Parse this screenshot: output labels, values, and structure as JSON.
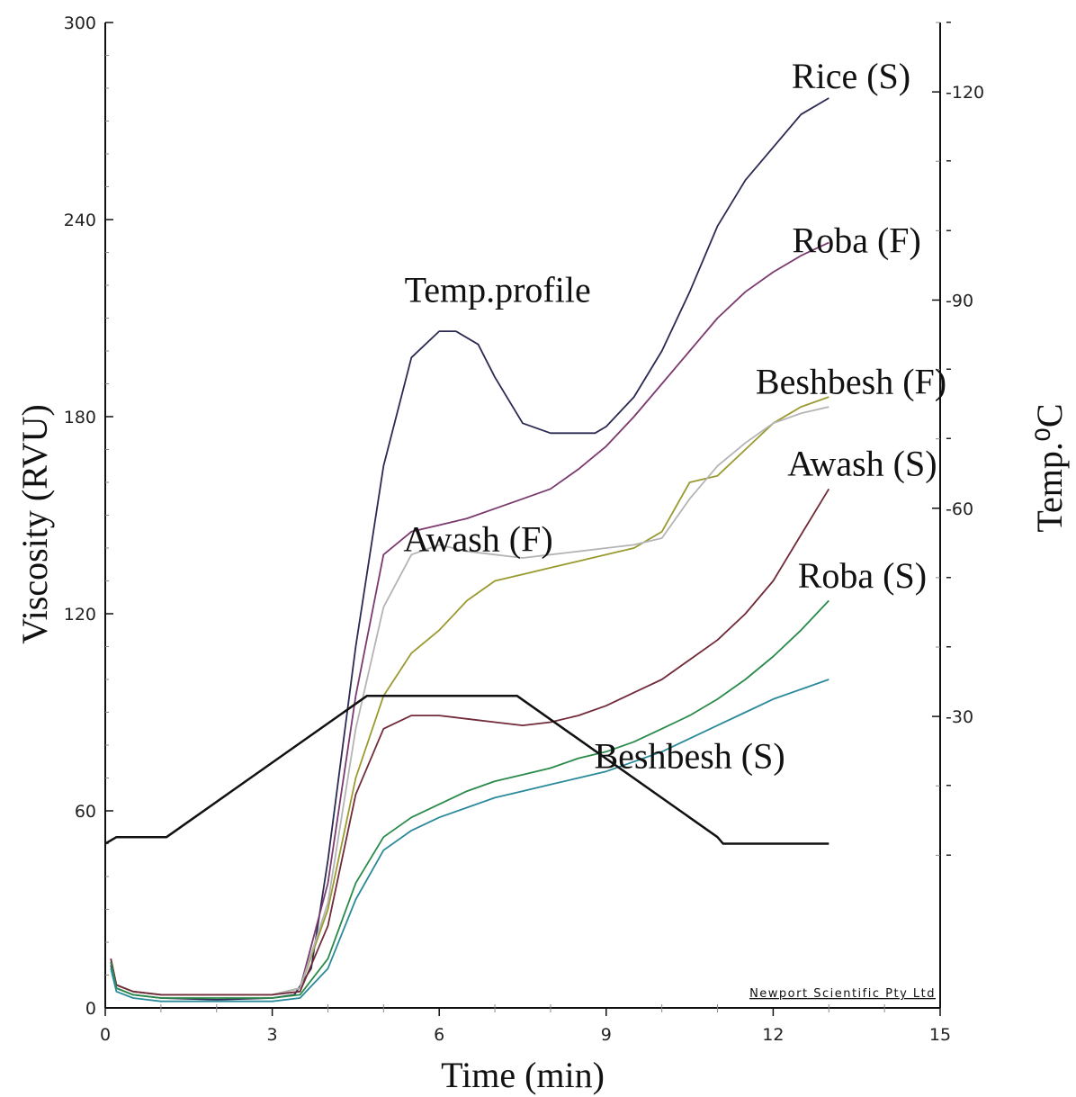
{
  "chart_data": {
    "type": "line",
    "xlabel": "Time (min)",
    "ylabel": "Viscosity (RVU)",
    "y2label": "Temp.⁰C",
    "credit": "Newport Scientific Pty Ltd",
    "xlim": [
      0,
      15
    ],
    "ylim": [
      0,
      300
    ],
    "y2lim": [
      -12,
      130
    ],
    "xticks": [
      "0",
      "3",
      "6",
      "9",
      "12",
      "15"
    ],
    "yticks": [
      "0",
      "60",
      "120",
      "180",
      "240",
      "300"
    ],
    "y2ticks": [
      "30",
      "60",
      "90",
      "120"
    ],
    "y2tickvalues": [
      30,
      60,
      90,
      120
    ],
    "series": [
      {
        "name": "Rice (S)",
        "color": "#2a2a52",
        "label_at": [
          13.4,
          280
        ],
        "x": [
          0.1,
          0.2,
          0.5,
          1.0,
          2.0,
          3.0,
          3.4,
          3.7,
          4.0,
          4.5,
          5.0,
          5.5,
          6.0,
          6.3,
          6.7,
          7.0,
          7.5,
          8.0,
          8.5,
          8.8,
          9.0,
          9.5,
          10.0,
          10.5,
          11.0,
          11.5,
          12.0,
          12.5,
          13.0
        ],
        "y": [
          13,
          6,
          4,
          3,
          2.5,
          3,
          4,
          12,
          45,
          110,
          165,
          198,
          206,
          206,
          202,
          192,
          178,
          175,
          175,
          175,
          177,
          186,
          200,
          218,
          238,
          252,
          262,
          272,
          277
        ]
      },
      {
        "name": "Roba (F)",
        "color": "#7a3a6e",
        "label_at": [
          13.5,
          230
        ],
        "x": [
          0.1,
          0.2,
          0.5,
          1.0,
          2.0,
          3.0,
          3.5,
          4.0,
          4.5,
          5.0,
          5.5,
          6.0,
          6.5,
          7.0,
          7.5,
          8.0,
          8.5,
          9.0,
          9.5,
          10.0,
          10.5,
          11.0,
          11.5,
          12.0,
          12.5,
          13.0
        ],
        "y": [
          14,
          7,
          5,
          4,
          4,
          4,
          6,
          38,
          95,
          138,
          145,
          147,
          149,
          152,
          155,
          158,
          164,
          171,
          180,
          190,
          200,
          210,
          218,
          224,
          229,
          233
        ]
      },
      {
        "name": "Beshbesh (F)",
        "color": "#9a9a30",
        "label_at": [
          13.4,
          187
        ],
        "x": [
          0.1,
          0.2,
          0.5,
          1.0,
          2.0,
          3.0,
          3.5,
          4.0,
          4.5,
          5.0,
          5.5,
          6.0,
          6.5,
          7.0,
          7.5,
          8.0,
          8.5,
          9.0,
          9.5,
          10.0,
          10.5,
          11.0,
          11.5,
          12.0,
          12.5,
          13.0
        ],
        "y": [
          15,
          7,
          5,
          4,
          4,
          4,
          6,
          30,
          70,
          95,
          108,
          115,
          124,
          130,
          132,
          134,
          136,
          138,
          140,
          145,
          160,
          162,
          170,
          178,
          183,
          186
        ]
      },
      {
        "name": "Awash (F)",
        "color": "#b4b4b4",
        "label_at": [
          6.7,
          139
        ],
        "x": [
          0.1,
          0.2,
          0.5,
          1.0,
          2.0,
          3.0,
          3.5,
          4.0,
          4.5,
          5.0,
          5.5,
          6.0,
          6.5,
          7.0,
          7.5,
          8.0,
          8.5,
          9.0,
          9.5,
          10.0,
          10.5,
          11.0,
          11.5,
          12.0,
          12.5,
          13.0
        ],
        "y": [
          15,
          7,
          5,
          4,
          4,
          4,
          6,
          32,
          85,
          122,
          138,
          141,
          139,
          138,
          137,
          138,
          139,
          140,
          141,
          143,
          155,
          165,
          172,
          178,
          181,
          183
        ]
      },
      {
        "name": "Awash (S)",
        "color": "#702a38",
        "label_at": [
          13.6,
          162
        ],
        "x": [
          0.1,
          0.2,
          0.5,
          1.0,
          2.0,
          3.0,
          3.5,
          4.0,
          4.5,
          5.0,
          5.5,
          6.0,
          6.5,
          7.0,
          7.5,
          8.0,
          8.5,
          9.0,
          9.5,
          10.0,
          10.5,
          11.0,
          11.5,
          12.0,
          12.5,
          13.0
        ],
        "y": [
          15,
          7,
          5,
          4,
          4,
          4,
          5,
          25,
          65,
          85,
          89,
          89,
          88,
          87,
          86,
          87,
          89,
          92,
          96,
          100,
          106,
          112,
          120,
          130,
          144,
          158
        ]
      },
      {
        "name": "Roba (S)",
        "color": "#2a8a4a",
        "label_at": [
          13.6,
          128
        ],
        "x": [
          0.1,
          0.2,
          0.5,
          1.0,
          2.0,
          3.0,
          3.5,
          4.0,
          4.5,
          5.0,
          5.5,
          6.0,
          6.5,
          7.0,
          7.5,
          8.0,
          8.5,
          9.0,
          9.5,
          10.0,
          10.5,
          11.0,
          11.5,
          12.0,
          12.5,
          13.0
        ],
        "y": [
          14,
          6,
          4,
          3,
          3,
          3,
          4,
          15,
          38,
          52,
          58,
          62,
          66,
          69,
          71,
          73,
          76,
          78,
          81,
          85,
          89,
          94,
          100,
          107,
          115,
          124
        ]
      },
      {
        "name": "Beshbesh (S)",
        "color": "#2a8a9a",
        "label_at": [
          10.5,
          73
        ],
        "x": [
          0.1,
          0.2,
          0.5,
          1.0,
          2.0,
          3.0,
          3.5,
          4.0,
          4.5,
          5.0,
          5.5,
          6.0,
          6.5,
          7.0,
          7.5,
          8.0,
          8.5,
          9.0,
          9.5,
          10.0,
          10.5,
          11.0,
          11.5,
          12.0,
          12.5,
          13.0
        ],
        "y": [
          12,
          5,
          3,
          2,
          2,
          2,
          3,
          12,
          33,
          48,
          54,
          58,
          61,
          64,
          66,
          68,
          70,
          72,
          75,
          78,
          82,
          86,
          90,
          94,
          97,
          100
        ]
      },
      {
        "name": "Temp.profile",
        "color": "#111111",
        "label_at": [
          7.05,
          215
        ],
        "x": [
          0,
          0.2,
          0.5,
          1.0,
          1.1,
          4.7,
          4.8,
          7.3,
          7.4,
          11.0,
          11.1,
          11.4,
          13.0
        ],
        "y": [
          50,
          52,
          52,
          52,
          52,
          95,
          95,
          95,
          95,
          52,
          50,
          50,
          50
        ]
      }
    ]
  }
}
